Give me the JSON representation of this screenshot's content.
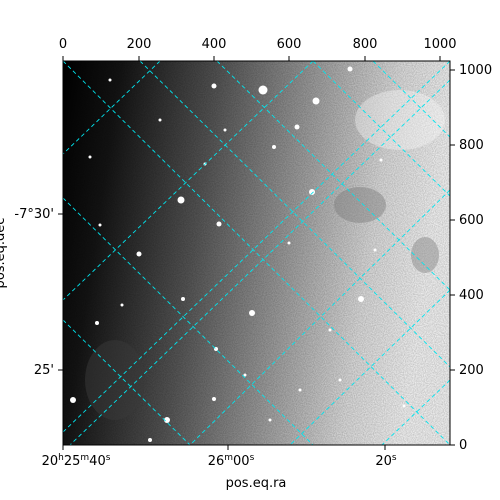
{
  "figure": {
    "type": "astronomical-image",
    "colormap": "greyscale",
    "grid_color": "#00e5ee",
    "grid_style": "dashed"
  },
  "axes": {
    "x_title": "pos.eq.ra",
    "y_title": "pos.eq.dec",
    "top_pixel_ticks": [
      "0",
      "200",
      "400",
      "600",
      "800",
      "1000"
    ],
    "right_pixel_ticks": [
      "0",
      "200",
      "400",
      "600",
      "800",
      "1000"
    ],
    "bottom_ra_ticks": [
      {
        "h": "20",
        "hs": "h",
        "m": "25",
        "ms": "m",
        "s": "40",
        "ss": "s"
      },
      {
        "m": "26",
        "ms": "m",
        "s": "00",
        "ss": "s"
      },
      {
        "s": "20",
        "ss": "s"
      }
    ],
    "left_dec_ticks": [
      "-7°30'",
      "25'"
    ]
  },
  "image_features": [
    "star-field",
    "nebulosity",
    "brightness-gradient"
  ]
}
